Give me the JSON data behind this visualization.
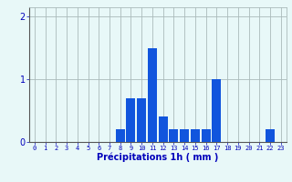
{
  "hours": [
    0,
    1,
    2,
    3,
    4,
    5,
    6,
    7,
    8,
    9,
    10,
    11,
    12,
    13,
    14,
    15,
    16,
    17,
    18,
    19,
    20,
    21,
    22,
    23
  ],
  "values": [
    0,
    0,
    0,
    0,
    0,
    0,
    0,
    0,
    0.2,
    0.7,
    0.7,
    1.5,
    0.4,
    0.2,
    0.2,
    0.2,
    0.2,
    1.0,
    0,
    0,
    0,
    0,
    0.2,
    0
  ],
  "bar_color": "#1155dd",
  "bg_color": "#e8f8f8",
  "grid_color": "#aabbbb",
  "xlabel": "Précipitations 1h ( mm )",
  "xlabel_color": "#0000bb",
  "tick_color": "#0000bb",
  "ylim": [
    0,
    2.15
  ],
  "yticks": [
    0,
    1,
    2
  ],
  "bar_width": 0.85
}
